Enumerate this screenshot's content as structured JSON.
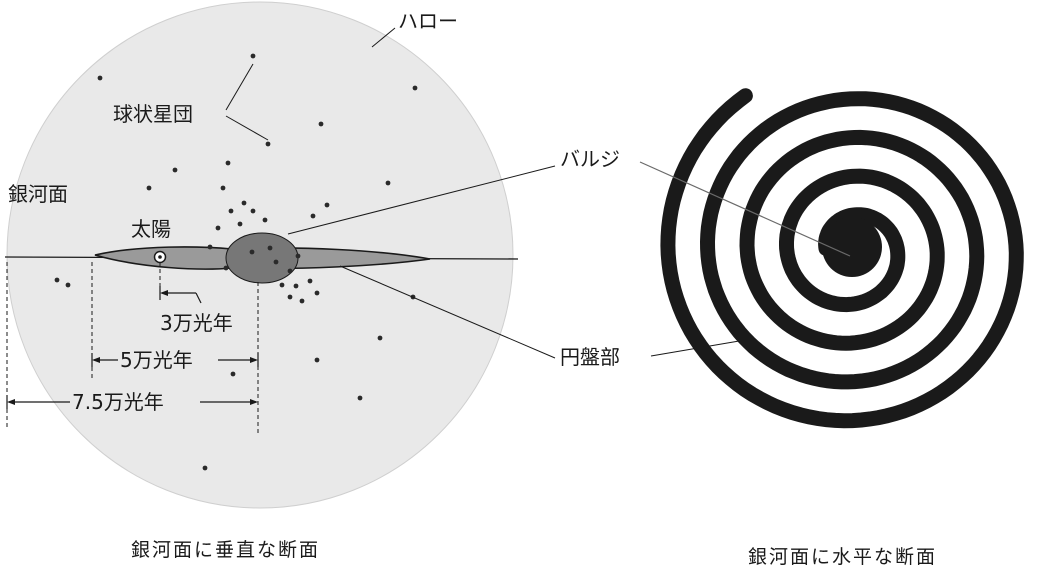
{
  "labels": {
    "halo": "ハロー",
    "globular_clusters": "球状星団",
    "bulge": "バルジ",
    "galactic_plane": "銀河面",
    "sun": "太陽",
    "disk": "円盤部"
  },
  "distances": {
    "d3": "3万光年",
    "d5": "5万光年",
    "d75": "7.5万光年"
  },
  "captions": {
    "vertical": "銀河面に垂直な断面",
    "horizontal": "銀河面に水平な断面"
  },
  "colors": {
    "halo_fill": "#e9e9e9",
    "ink": "#1a1a1a",
    "disk_fill": "#9a9a9a",
    "bulge_fill": "#6f6f6f",
    "spiral": "#1a1a1a"
  }
}
